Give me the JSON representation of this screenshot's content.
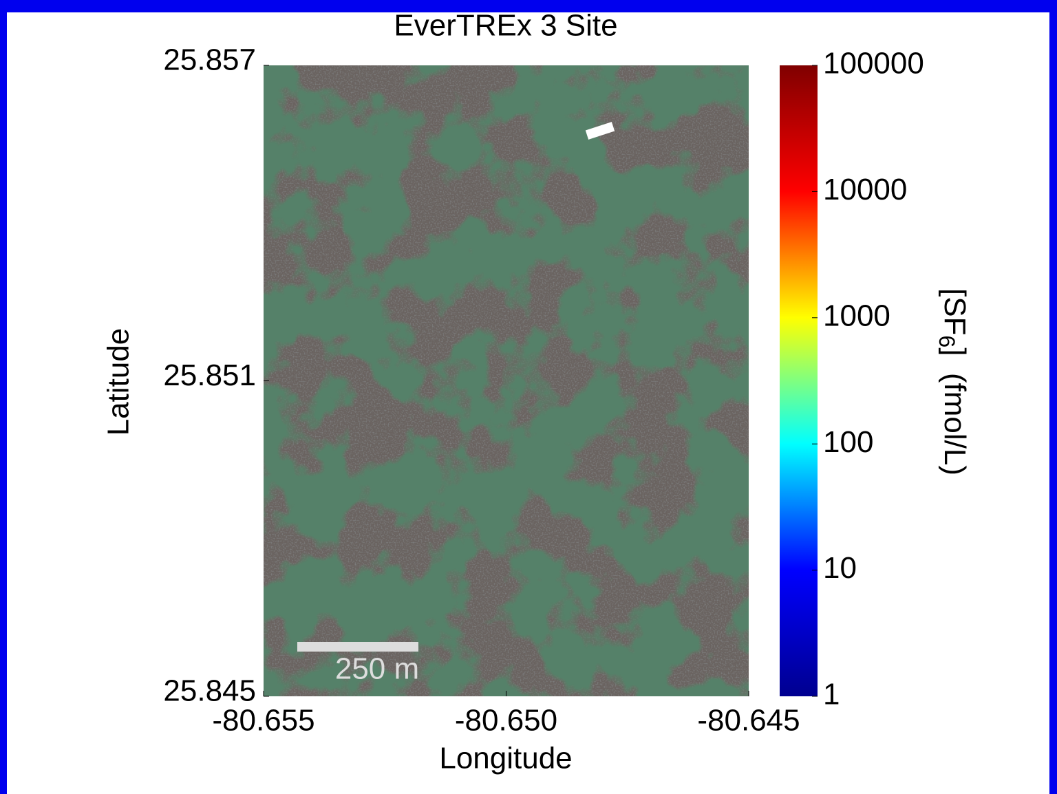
{
  "chart_data": {
    "type": "image",
    "title": "EverTREx 3 Site",
    "x_label": "Longitude",
    "y_label": "Latitude",
    "xlim": [
      -80.655,
      -80.645
    ],
    "xticks": [
      -80.655,
      {
        "value": -80.65,
        "label": "-80.650"
      },
      -80.645
    ],
    "ylim": [
      25.845,
      25.857
    ],
    "yticks": [
      25.845,
      25.851,
      25.857
    ],
    "annotations": [
      "250 m"
    ],
    "colorbar": {
      "label": {
        "text": "[SF",
        "subscript": "6",
        "suffix": "]  (fmol/L)"
      },
      "log": true,
      "lim": [
        1,
        100000
      ],
      "ticks": [
        1,
        10,
        100,
        1000,
        10000,
        100000
      ],
      "colors": [
        "#00008f",
        "#0000ff",
        "#00ffff",
        "#ffff00",
        "#ff0000",
        "#800000"
      ]
    }
  }
}
